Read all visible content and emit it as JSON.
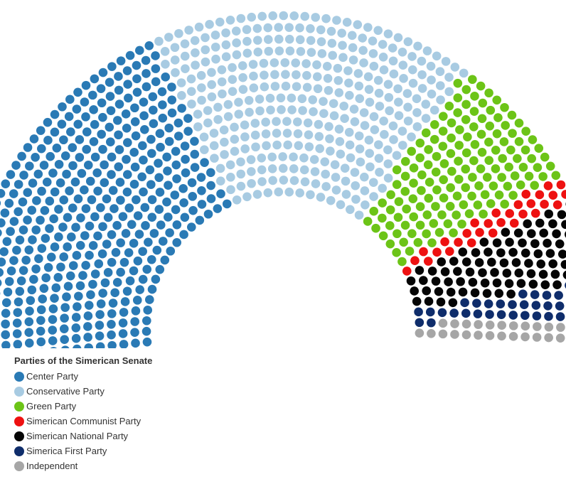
{
  "chart_data": {
    "type": "parliament",
    "legend_title": "Parties of the Simerican Senate",
    "legend_placement": "bottom-left",
    "series": [
      {
        "name": "Center Party",
        "value": 430,
        "color": "#2a7ab5"
      },
      {
        "name": "Conservative Party",
        "value": 350,
        "color": "#a8cbe2"
      },
      {
        "name": "Green Party",
        "value": 150,
        "color": "#6cc417"
      },
      {
        "name": "Simerican Communist Party",
        "value": 30,
        "color": "#ee1111"
      },
      {
        "name": "Simerican National Party",
        "value": 90,
        "color": "#050505"
      },
      {
        "name": "Simerica First Party",
        "value": 40,
        "color": "#0f2d6b"
      },
      {
        "name": "Independent",
        "value": 30,
        "color": "#a6a6a6"
      }
    ]
  }
}
